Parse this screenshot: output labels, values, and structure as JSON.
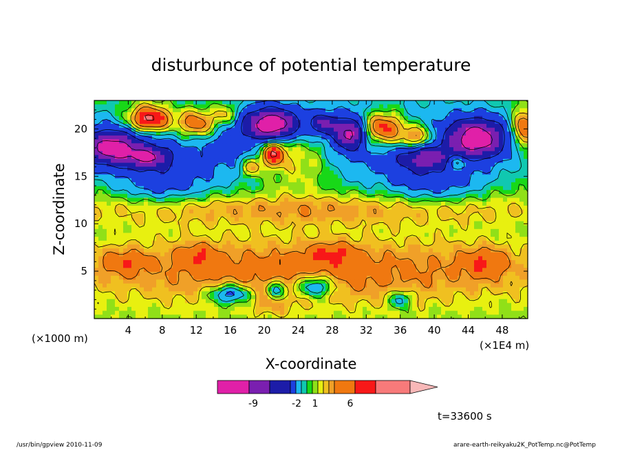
{
  "chart_data": {
    "type": "heatmap",
    "title": "disturbunce of potential temperature",
    "xlabel": "X-coordinate",
    "ylabel": "Z-coordinate",
    "x_unit_left": "(×1000 m)",
    "x_unit_right": "(×1E4 m)",
    "xlim": [
      0,
      51
    ],
    "ylim": [
      0,
      23
    ],
    "x_ticks": [
      4,
      8,
      12,
      16,
      20,
      24,
      28,
      32,
      36,
      40,
      44,
      48
    ],
    "y_ticks": [
      5,
      10,
      15,
      20
    ],
    "time_label": "t=33600 s",
    "colorbar": {
      "colors": [
        "#e020a8",
        "#7a1fb0",
        "#1c1ca8",
        "#1c40e0",
        "#1cb8f0",
        "#10c8b0",
        "#18d818",
        "#90e018",
        "#e8f010",
        "#f0c020",
        "#f0a028",
        "#f07810",
        "#f81818",
        "#f87a7a",
        "#f8b8b8"
      ],
      "tick_labels": [
        "-9",
        "-2",
        "1",
        "6"
      ]
    },
    "blobs": [
      {
        "x": 25,
        "z": 5.0,
        "rx": 30,
        "rz": 3.5,
        "v": 2.4
      },
      {
        "x": 25,
        "z": 11.5,
        "rx": 30,
        "rz": 1.6,
        "v": 1.8
      },
      {
        "x": 3.5,
        "z": 6.0,
        "rx": 2.8,
        "rz": 1.3,
        "v": 1.6
      },
      {
        "x": 12,
        "z": 6.8,
        "rx": 2.5,
        "rz": 1.3,
        "v": 1.5
      },
      {
        "x": 28,
        "z": 7.0,
        "rx": 2.8,
        "rz": 1.1,
        "v": 1.6
      },
      {
        "x": 46,
        "z": 6.0,
        "rx": 2.8,
        "rz": 1.6,
        "v": 1.7
      },
      {
        "x": 21,
        "z": 1.5,
        "rx": 2.2,
        "rz": 1.2,
        "v": 1.1
      },
      {
        "x": 16,
        "z": 2.6,
        "rx": 2.4,
        "rz": 1.0,
        "v": -3.8
      },
      {
        "x": 21.5,
        "z": 3.0,
        "rx": 1.2,
        "rz": 1.0,
        "v": -3.2
      },
      {
        "x": 26,
        "z": 3.4,
        "rx": 2.2,
        "rz": 1.1,
        "v": -3.8
      },
      {
        "x": 36,
        "z": 2.0,
        "rx": 1.2,
        "rz": 0.9,
        "v": -2.6
      },
      {
        "x": 25,
        "z": 18.8,
        "rx": 30,
        "rz": 4.6,
        "v": -3.2
      },
      {
        "x": 8,
        "z": 14.5,
        "rx": 5,
        "rz": 2.2,
        "v": -2.4
      },
      {
        "x": 40,
        "z": 14.5,
        "rx": 5,
        "rz": 2.2,
        "v": -2.4
      },
      {
        "x": 24,
        "z": 17.5,
        "rx": 4.5,
        "rz": 3.5,
        "v": 3.4
      },
      {
        "x": 2.0,
        "z": 18.0,
        "rx": 3.5,
        "rz": 1.8,
        "v": -8.0
      },
      {
        "x": 6.5,
        "z": 17.0,
        "rx": 2.5,
        "rz": 1.1,
        "v": -5.5
      },
      {
        "x": 6.5,
        "z": 21.0,
        "rx": 2.6,
        "rz": 1.5,
        "v": 6.0
      },
      {
        "x": 12,
        "z": 20.5,
        "rx": 2.4,
        "rz": 1.6,
        "v": 4.8
      },
      {
        "x": 15.5,
        "z": 21.5,
        "rx": 1.6,
        "rz": 1.2,
        "v": 2.8
      },
      {
        "x": 21,
        "z": 20.5,
        "rx": 3.0,
        "rz": 1.6,
        "v": -9.0
      },
      {
        "x": 21,
        "z": 17.5,
        "rx": 1.4,
        "rz": 1.4,
        "v": 4.8
      },
      {
        "x": 30,
        "z": 19.5,
        "rx": 1.6,
        "rz": 1.5,
        "v": -7.0
      },
      {
        "x": 34,
        "z": 20.0,
        "rx": 2.6,
        "rz": 1.8,
        "v": 5.8
      },
      {
        "x": 38,
        "z": 19.0,
        "rx": 2.0,
        "rz": 1.5,
        "v": 4.2
      },
      {
        "x": 39,
        "z": 17.0,
        "rx": 3.0,
        "rz": 1.2,
        "v": -5.5
      },
      {
        "x": 45,
        "z": 19.0,
        "rx": 3.2,
        "rz": 2.0,
        "v": -8.5
      },
      {
        "x": 50.5,
        "z": 20.0,
        "rx": 1.4,
        "rz": 2.0,
        "v": 4.8
      },
      {
        "x": 42.5,
        "z": 16.5,
        "rx": 1.4,
        "rz": 0.8,
        "v": 3.2
      },
      {
        "x": 27,
        "z": 20.5,
        "rx": 1.5,
        "rz": 1.1,
        "v": -5.0
      },
      {
        "x": 18.5,
        "z": 16.0,
        "rx": 1.2,
        "rz": 1.0,
        "v": 3.0
      }
    ],
    "levels": [
      -10,
      -8,
      -6,
      -4,
      -2,
      -1,
      -0.5,
      0,
      0.5,
      1,
      1.5,
      2,
      3,
      4,
      5,
      6,
      8
    ]
  },
  "footer": {
    "program": "/usr/bin/gpview   2010-11-09",
    "source": "arare-earth-reikyaku2K_PotTemp.nc@PotTemp"
  }
}
